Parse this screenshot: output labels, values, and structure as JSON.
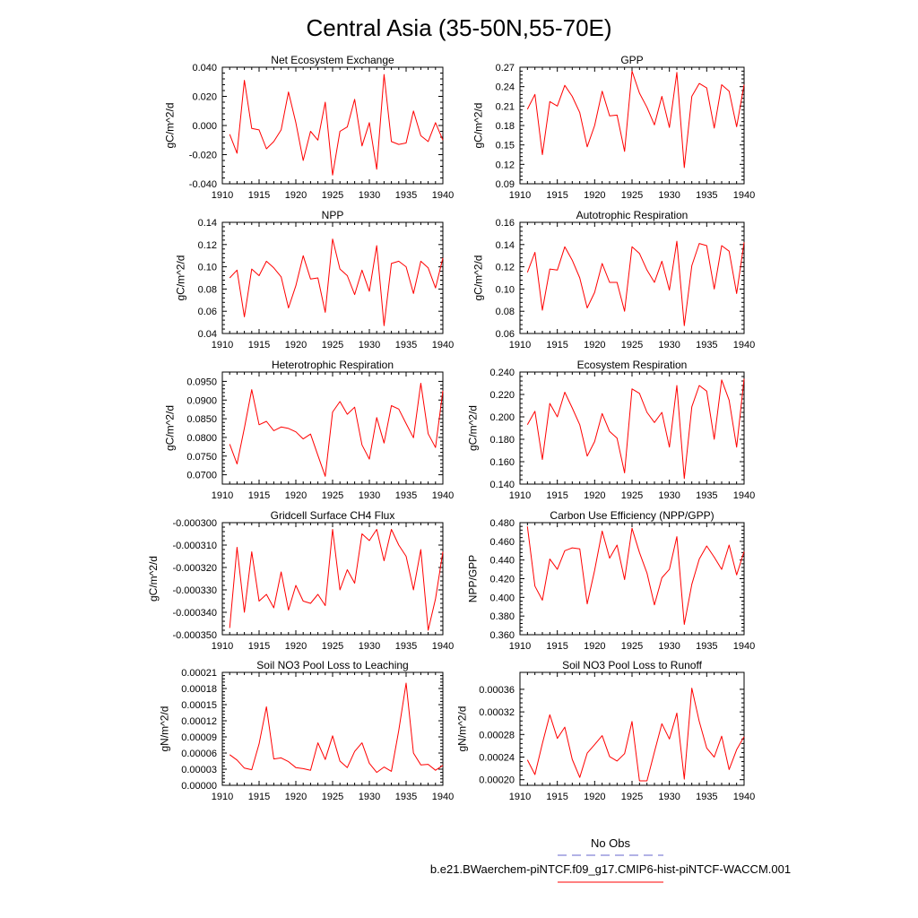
{
  "title": "Central Asia (35-50N,55-70E)",
  "legend": {
    "obs_label": "No Obs",
    "model_label": "b.e21.BWaerchem-piNTCF.f09_g17.CMIP6-hist-piNTCF-WACCM.001",
    "obs_color": "#6666cc",
    "model_color": "#ff0000"
  },
  "chart_data": [
    {
      "type": "line",
      "title": "Net Ecosystem Exchange",
      "ylabel": "gC/m^2/d",
      "xlim": [
        1910,
        1940
      ],
      "xticks": [
        "1910",
        "1915",
        "1920",
        "1925",
        "1930",
        "1935",
        "1940"
      ],
      "ylim": [
        -0.04,
        0.04
      ],
      "yticks": [
        "-0.040",
        "-0.020",
        "0.000",
        "0.020",
        "0.040"
      ],
      "x": [
        1911,
        1912,
        1913,
        1914,
        1915,
        1916,
        1917,
        1918,
        1919,
        1920,
        1921,
        1922,
        1923,
        1924,
        1925,
        1926,
        1927,
        1928,
        1929,
        1930,
        1931,
        1932,
        1933,
        1934,
        1935,
        1936,
        1937,
        1938,
        1939,
        1940
      ],
      "series": [
        {
          "values": [
            -0.006,
            -0.019,
            0.031,
            -0.002,
            -0.003,
            -0.016,
            -0.011,
            -0.003,
            0.023,
            0.002,
            -0.024,
            -0.004,
            -0.01,
            0.016,
            -0.034,
            -0.004,
            -0.001,
            0.018,
            -0.014,
            0.002,
            -0.03,
            0.035,
            -0.011,
            -0.013,
            -0.012,
            0.01,
            -0.007,
            -0.011,
            0.002,
            -0.01
          ],
          "color": "#ff0000"
        }
      ]
    },
    {
      "type": "line",
      "title": "GPP",
      "ylabel": "gC/m^2/d",
      "xlim": [
        1910,
        1940
      ],
      "xticks": [
        "1910",
        "1915",
        "1920",
        "1925",
        "1930",
        "1935",
        "1940"
      ],
      "ylim": [
        0.09,
        0.27
      ],
      "yticks": [
        "0.09",
        "0.12",
        "0.15",
        "0.18",
        "0.21",
        "0.24",
        "0.27"
      ],
      "x": [
        1911,
        1912,
        1913,
        1914,
        1915,
        1916,
        1917,
        1918,
        1919,
        1920,
        1921,
        1922,
        1923,
        1924,
        1925,
        1926,
        1927,
        1928,
        1929,
        1930,
        1931,
        1932,
        1933,
        1934,
        1935,
        1936,
        1937,
        1938,
        1939,
        1940
      ],
      "series": [
        {
          "values": [
            0.205,
            0.228,
            0.135,
            0.217,
            0.21,
            0.242,
            0.225,
            0.2,
            0.147,
            0.18,
            0.233,
            0.195,
            0.196,
            0.14,
            0.264,
            0.23,
            0.208,
            0.181,
            0.225,
            0.177,
            0.262,
            0.115,
            0.225,
            0.245,
            0.238,
            0.176,
            0.243,
            0.233,
            0.178,
            0.243
          ],
          "color": "#ff0000"
        }
      ]
    },
    {
      "type": "line",
      "title": "NPP",
      "ylabel": "gC/m^2/d",
      "xlim": [
        1910,
        1940
      ],
      "xticks": [
        "1910",
        "1915",
        "1920",
        "1925",
        "1930",
        "1935",
        "1940"
      ],
      "ylim": [
        0.04,
        0.14
      ],
      "yticks": [
        "0.04",
        "0.06",
        "0.08",
        "0.10",
        "0.12",
        "0.14"
      ],
      "x": [
        1911,
        1912,
        1913,
        1914,
        1915,
        1916,
        1917,
        1918,
        1919,
        1920,
        1921,
        1922,
        1923,
        1924,
        1925,
        1926,
        1927,
        1928,
        1929,
        1930,
        1931,
        1932,
        1933,
        1934,
        1935,
        1936,
        1937,
        1938,
        1939,
        1940
      ],
      "series": [
        {
          "values": [
            0.09,
            0.097,
            0.055,
            0.098,
            0.092,
            0.105,
            0.099,
            0.091,
            0.063,
            0.083,
            0.11,
            0.089,
            0.09,
            0.059,
            0.125,
            0.098,
            0.092,
            0.075,
            0.097,
            0.078,
            0.119,
            0.047,
            0.103,
            0.105,
            0.1,
            0.076,
            0.105,
            0.099,
            0.081,
            0.108
          ],
          "color": "#ff0000"
        }
      ]
    },
    {
      "type": "line",
      "title": "Autotrophic Respiration",
      "ylabel": "gC/m^2/d",
      "xlim": [
        1910,
        1940
      ],
      "xticks": [
        "1910",
        "1915",
        "1920",
        "1925",
        "1930",
        "1935",
        "1940"
      ],
      "ylim": [
        0.06,
        0.16
      ],
      "yticks": [
        "0.06",
        "0.08",
        "0.10",
        "0.12",
        "0.14",
        "0.16"
      ],
      "x": [
        1911,
        1912,
        1913,
        1914,
        1915,
        1916,
        1917,
        1918,
        1919,
        1920,
        1921,
        1922,
        1923,
        1924,
        1925,
        1926,
        1927,
        1928,
        1929,
        1930,
        1931,
        1932,
        1933,
        1934,
        1935,
        1936,
        1937,
        1938,
        1939,
        1940
      ],
      "series": [
        {
          "values": [
            0.115,
            0.133,
            0.081,
            0.118,
            0.117,
            0.138,
            0.126,
            0.11,
            0.083,
            0.097,
            0.123,
            0.106,
            0.106,
            0.08,
            0.138,
            0.132,
            0.117,
            0.106,
            0.125,
            0.099,
            0.143,
            0.067,
            0.121,
            0.141,
            0.139,
            0.1,
            0.139,
            0.134,
            0.096,
            0.142
          ],
          "color": "#ff0000"
        }
      ]
    },
    {
      "type": "line",
      "title": "Heterotrophic Respiration",
      "ylabel": "gC/m^2/d",
      "xlim": [
        1910,
        1940
      ],
      "xticks": [
        "1910",
        "1915",
        "1920",
        "1925",
        "1930",
        "1935",
        "1940"
      ],
      "ylim": [
        0.0675,
        0.0975
      ],
      "yticks": [
        "0.0700",
        "0.0750",
        "0.0800",
        "0.0850",
        "0.0900",
        "0.0950"
      ],
      "x": [
        1911,
        1912,
        1913,
        1914,
        1915,
        1916,
        1917,
        1918,
        1919,
        1920,
        1921,
        1922,
        1923,
        1924,
        1925,
        1926,
        1927,
        1928,
        1929,
        1930,
        1931,
        1932,
        1933,
        1934,
        1935,
        1936,
        1937,
        1938,
        1939,
        1940
      ],
      "series": [
        {
          "values": [
            0.0782,
            0.0729,
            0.0825,
            0.0928,
            0.0834,
            0.0843,
            0.0818,
            0.0828,
            0.0824,
            0.0815,
            0.0796,
            0.0809,
            0.0752,
            0.0696,
            0.0868,
            0.0896,
            0.0862,
            0.0881,
            0.078,
            0.0742,
            0.0853,
            0.0785,
            0.0885,
            0.0876,
            0.0837,
            0.0799,
            0.0945,
            0.081,
            0.0773,
            0.0925
          ],
          "color": "#ff0000"
        }
      ]
    },
    {
      "type": "line",
      "title": "Ecosystem Respiration",
      "ylabel": "gC/m^2/d",
      "xlim": [
        1910,
        1940
      ],
      "xticks": [
        "1910",
        "1915",
        "1920",
        "1925",
        "1930",
        "1935",
        "1940"
      ],
      "ylim": [
        0.14,
        0.24
      ],
      "yticks": [
        "0.140",
        "0.160",
        "0.180",
        "0.200",
        "0.220",
        "0.240"
      ],
      "x": [
        1911,
        1912,
        1913,
        1914,
        1915,
        1916,
        1917,
        1918,
        1919,
        1920,
        1921,
        1922,
        1923,
        1924,
        1925,
        1926,
        1927,
        1928,
        1929,
        1930,
        1931,
        1932,
        1933,
        1934,
        1935,
        1936,
        1937,
        1938,
        1939,
        1940
      ],
      "series": [
        {
          "values": [
            0.193,
            0.205,
            0.162,
            0.212,
            0.2,
            0.222,
            0.208,
            0.193,
            0.165,
            0.178,
            0.203,
            0.187,
            0.181,
            0.15,
            0.225,
            0.221,
            0.204,
            0.195,
            0.204,
            0.173,
            0.228,
            0.145,
            0.209,
            0.228,
            0.223,
            0.18,
            0.233,
            0.215,
            0.173,
            0.234
          ],
          "color": "#ff0000"
        }
      ]
    },
    {
      "type": "line",
      "title": "Gridcell Surface CH4 Flux",
      "ylabel": "gC/m^2/d",
      "xlim": [
        1910,
        1940
      ],
      "xticks": [
        "1910",
        "1915",
        "1920",
        "1925",
        "1930",
        "1935",
        "1940"
      ],
      "ylim": [
        -0.00035,
        -0.0003
      ],
      "yticks": [
        "-0.000350",
        "-0.000340",
        "-0.000330",
        "-0.000320",
        "-0.000310",
        "-0.000300"
      ],
      "x": [
        1911,
        1912,
        1913,
        1914,
        1915,
        1916,
        1917,
        1918,
        1919,
        1920,
        1921,
        1922,
        1923,
        1924,
        1925,
        1926,
        1927,
        1928,
        1929,
        1930,
        1931,
        1932,
        1933,
        1934,
        1935,
        1936,
        1937,
        1938,
        1939,
        1940
      ],
      "series": [
        {
          "values": [
            -0.000347,
            -0.000311,
            -0.00034,
            -0.000313,
            -0.000335,
            -0.000332,
            -0.000338,
            -0.000322,
            -0.000339,
            -0.000328,
            -0.000335,
            -0.000336,
            -0.000332,
            -0.000337,
            -0.000303,
            -0.00033,
            -0.000321,
            -0.000327,
            -0.000305,
            -0.000308,
            -0.000303,
            -0.000317,
            -0.000303,
            -0.00031,
            -0.000315,
            -0.00033,
            -0.000312,
            -0.000348,
            -0.000334,
            -0.000313
          ],
          "color": "#ff0000"
        }
      ]
    },
    {
      "type": "line",
      "title": "Carbon Use Efficiency (NPP/GPP)",
      "ylabel": "NPP/GPP",
      "xlim": [
        1910,
        1940
      ],
      "xticks": [
        "1910",
        "1915",
        "1920",
        "1925",
        "1930",
        "1935",
        "1940"
      ],
      "ylim": [
        0.36,
        0.48
      ],
      "yticks": [
        "0.360",
        "0.380",
        "0.400",
        "0.420",
        "0.440",
        "0.460",
        "0.480"
      ],
      "x": [
        1911,
        1912,
        1913,
        1914,
        1915,
        1916,
        1917,
        1918,
        1919,
        1920,
        1921,
        1922,
        1923,
        1924,
        1925,
        1926,
        1927,
        1928,
        1929,
        1930,
        1931,
        1932,
        1933,
        1934,
        1935,
        1936,
        1937,
        1938,
        1939,
        1940
      ],
      "series": [
        {
          "values": [
            0.476,
            0.412,
            0.397,
            0.441,
            0.43,
            0.45,
            0.453,
            0.452,
            0.393,
            0.429,
            0.471,
            0.442,
            0.456,
            0.419,
            0.474,
            0.448,
            0.426,
            0.392,
            0.421,
            0.43,
            0.465,
            0.371,
            0.414,
            0.441,
            0.455,
            0.443,
            0.43,
            0.456,
            0.424,
            0.449
          ],
          "color": "#ff0000"
        }
      ]
    },
    {
      "type": "line",
      "title": "Soil NO3 Pool Loss to Leaching",
      "ylabel": "gN/m^2/d",
      "xlim": [
        1910,
        1940
      ],
      "xticks": [
        "1910",
        "1915",
        "1920",
        "1925",
        "1930",
        "1935",
        "1940"
      ],
      "ylim": [
        0,
        0.00021
      ],
      "yticks": [
        "0.00000",
        "0.00003",
        "0.00006",
        "0.00009",
        "0.00012",
        "0.00015",
        "0.00018",
        "0.00021"
      ],
      "x": [
        1911,
        1912,
        1913,
        1914,
        1915,
        1916,
        1917,
        1918,
        1919,
        1920,
        1921,
        1922,
        1923,
        1924,
        1925,
        1926,
        1927,
        1928,
        1929,
        1930,
        1931,
        1932,
        1933,
        1934,
        1935,
        1936,
        1937,
        1938,
        1939,
        1940
      ],
      "series": [
        {
          "values": [
            5.7e-05,
            4.7e-05,
            3.2e-05,
            2.9e-05,
            7.7e-05,
            0.000146,
            4.9e-05,
            5.1e-05,
            4.4e-05,
            3.3e-05,
            3.1e-05,
            2.8e-05,
            7.9e-05,
            4.8e-05,
            9.2e-05,
            4.5e-05,
            3.3e-05,
            6.3e-05,
            7.9e-05,
            4.1e-05,
            2.4e-05,
            3.4e-05,
            2.6e-05,
            0.000102,
            0.00019,
            6e-05,
            3.8e-05,
            3.9e-05,
            2.8e-05,
            3.7e-05
          ],
          "color": "#ff0000"
        }
      ]
    },
    {
      "type": "line",
      "title": "Soil NO3 Pool Loss to Runoff",
      "ylabel": "gN/m^2/d",
      "xlim": [
        1910,
        1940
      ],
      "xticks": [
        "1910",
        "1915",
        "1920",
        "1925",
        "1930",
        "1935",
        "1940"
      ],
      "ylim": [
        0.00019,
        0.00039
      ],
      "yticks": [
        "0.00020",
        "0.00024",
        "0.00028",
        "0.00032",
        "0.00036"
      ],
      "x": [
        1911,
        1912,
        1913,
        1914,
        1915,
        1916,
        1917,
        1918,
        1919,
        1920,
        1921,
        1922,
        1923,
        1924,
        1925,
        1926,
        1927,
        1928,
        1929,
        1930,
        1931,
        1932,
        1933,
        1934,
        1935,
        1936,
        1937,
        1938,
        1939,
        1940
      ],
      "series": [
        {
          "values": [
            0.000235,
            0.000209,
            0.000264,
            0.000315,
            0.000273,
            0.000293,
            0.000236,
            0.000204,
            0.000247,
            0.000262,
            0.000278,
            0.000241,
            0.000233,
            0.000246,
            0.000303,
            0.000198,
            0.000198,
            0.000249,
            0.000299,
            0.000272,
            0.000318,
            0.000201,
            0.000362,
            0.000303,
            0.000256,
            0.00024,
            0.000277,
            0.000218,
            0.000253,
            0.000276
          ],
          "color": "#ff0000"
        }
      ]
    }
  ]
}
